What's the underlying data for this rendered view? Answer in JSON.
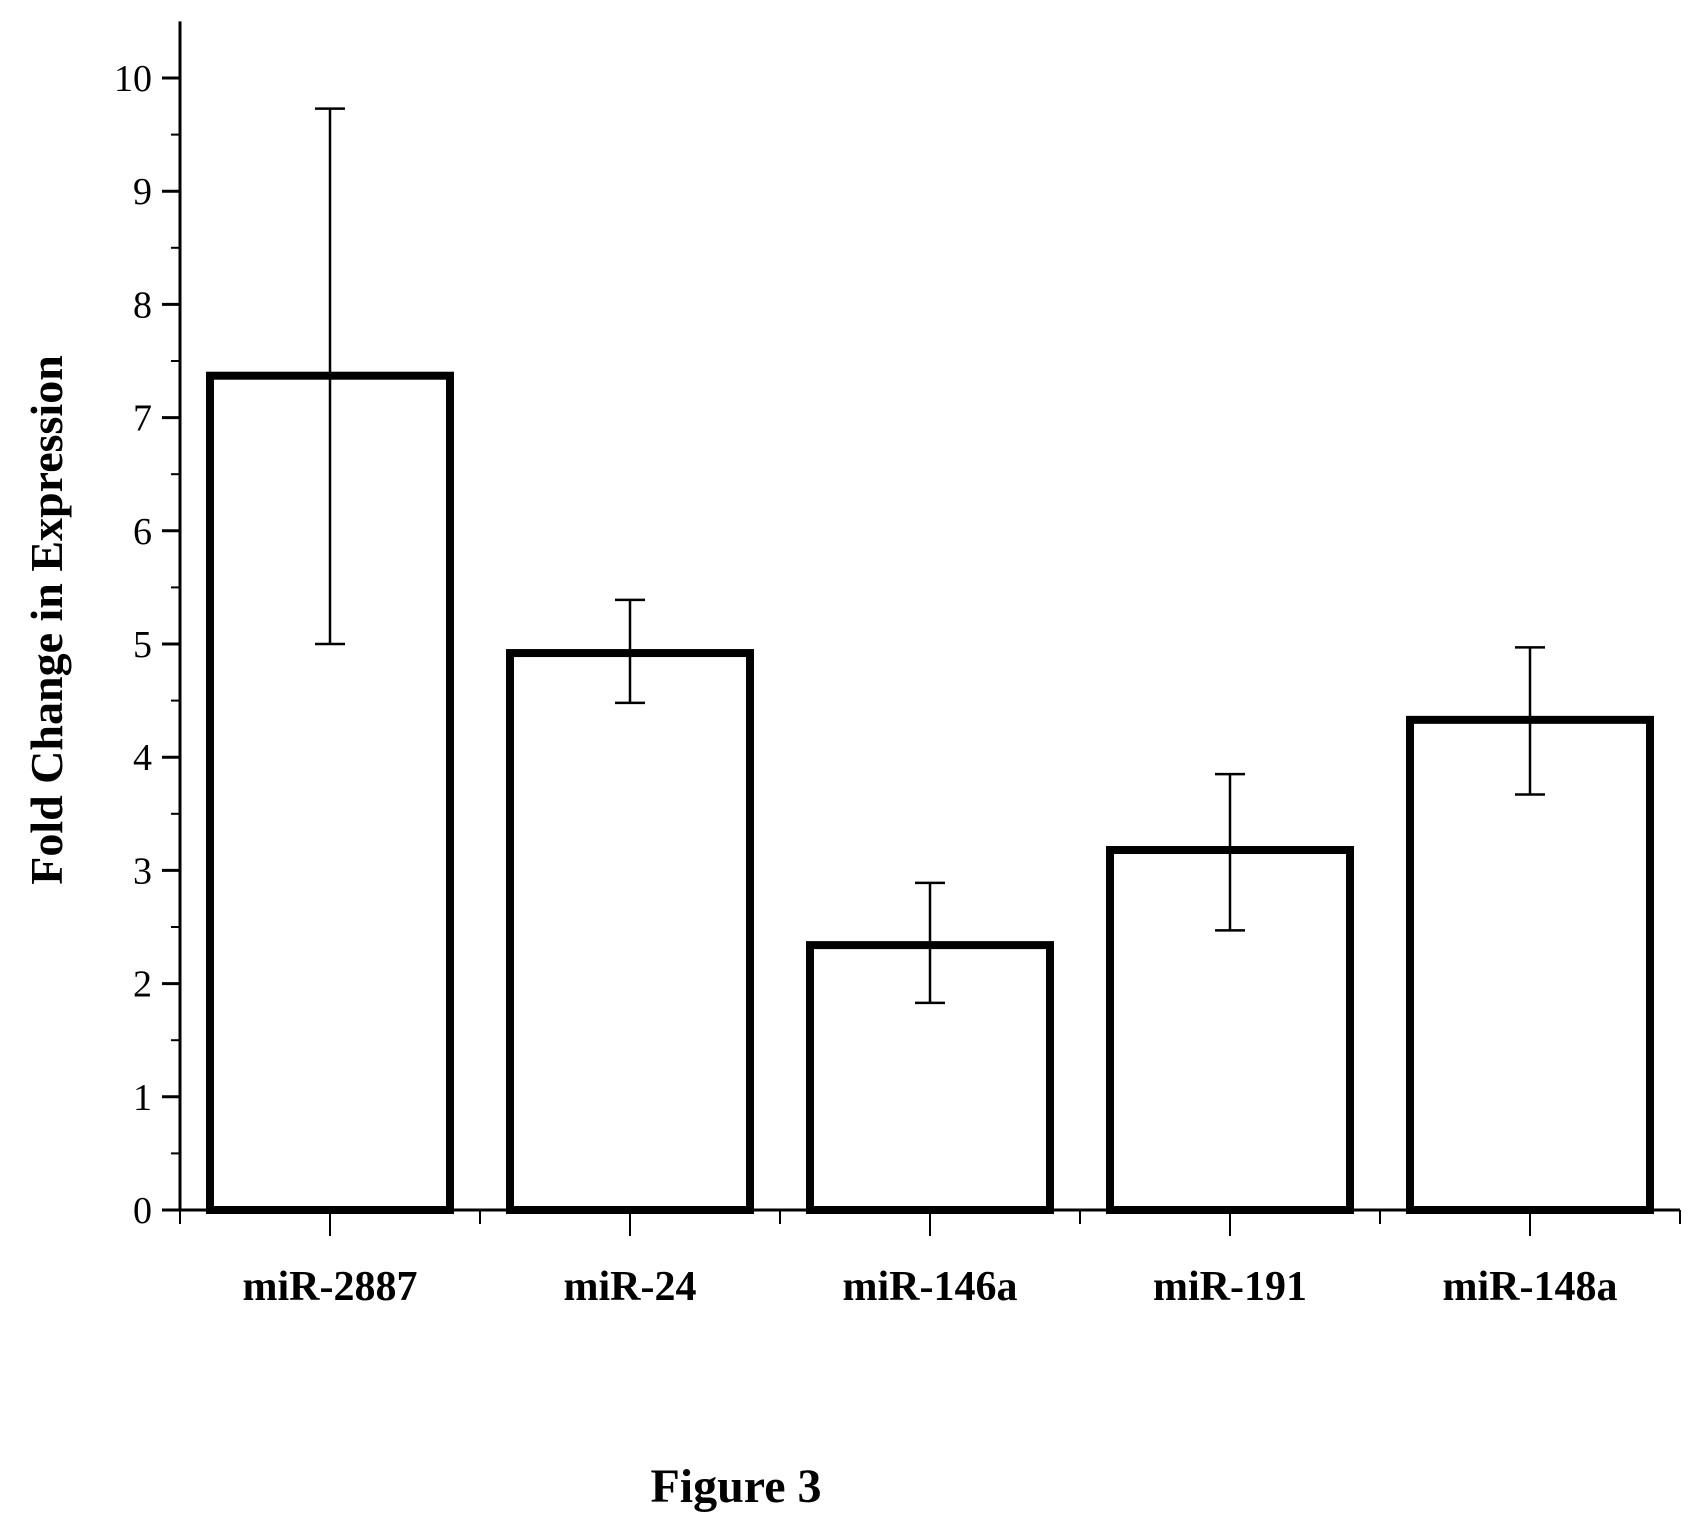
{
  "chart_data": {
    "type": "bar",
    "title": "",
    "xlabel": "",
    "ylabel": "Fold Change in Expression",
    "ylim": [
      0,
      10.5
    ],
    "yticks": [
      0,
      1,
      2,
      3,
      4,
      5,
      6,
      7,
      8,
      9,
      10
    ],
    "categories": [
      "miR-2887",
      "miR-24",
      "miR-146a",
      "miR-191",
      "miR-148a"
    ],
    "values": [
      7.37,
      4.92,
      2.34,
      3.18,
      4.33
    ],
    "error_low": [
      5.0,
      4.48,
      1.83,
      2.47,
      3.67
    ],
    "error_high": [
      9.73,
      5.39,
      2.89,
      3.85,
      4.97
    ],
    "grid": false,
    "legend": "none",
    "bar_fill": "#ffffff",
    "bar_stroke": "#000000"
  },
  "caption": "Figure 3"
}
